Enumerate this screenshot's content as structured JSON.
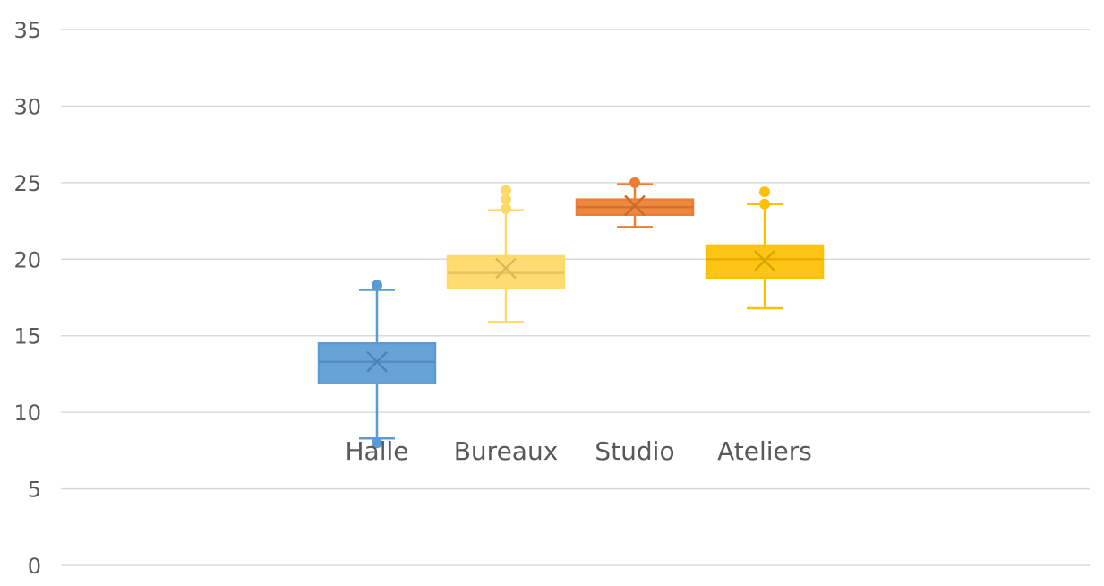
{
  "chart_data": {
    "type": "box",
    "title": "",
    "xlabel": "",
    "ylabel": "",
    "ylim": [
      0,
      35
    ],
    "yticks": [
      0,
      5,
      10,
      15,
      20,
      25,
      30,
      35
    ],
    "ytick_labels": [
      "0",
      "5",
      "10",
      "15",
      "20",
      "25",
      "30",
      "35"
    ],
    "grid": true,
    "legend": "none",
    "categories": [
      "Halle",
      "Bureaux",
      "Studio",
      "Ateliers"
    ],
    "category_label_y": 7.5,
    "boxes": [
      {
        "category": "Halle",
        "color": "#5b9bd5",
        "whisker_low": 8.3,
        "q1": 11.9,
        "median": 13.3,
        "q3": 14.5,
        "whisker_high": 18.0,
        "mean": 13.3,
        "outliers": [
          8.0,
          18.3
        ]
      },
      {
        "category": "Bureaux",
        "color": "#ffd966",
        "whisker_low": 15.9,
        "q1": 18.1,
        "median": 19.1,
        "q3": 20.2,
        "whisker_high": 23.2,
        "mean": 19.4,
        "outliers": [
          23.3,
          23.9,
          24.5
        ]
      },
      {
        "category": "Studio",
        "color": "#ed7d31",
        "whisker_low": 22.1,
        "q1": 22.9,
        "median": 23.4,
        "q3": 23.9,
        "whisker_high": 24.9,
        "mean": 23.5,
        "outliers": [
          25.0
        ]
      },
      {
        "category": "Ateliers",
        "color": "#ffc000",
        "whisker_low": 16.8,
        "q1": 18.8,
        "median": 20.0,
        "q3": 20.9,
        "whisker_high": 23.6,
        "mean": 19.9,
        "outliers": [
          23.6,
          24.4
        ]
      }
    ]
  }
}
